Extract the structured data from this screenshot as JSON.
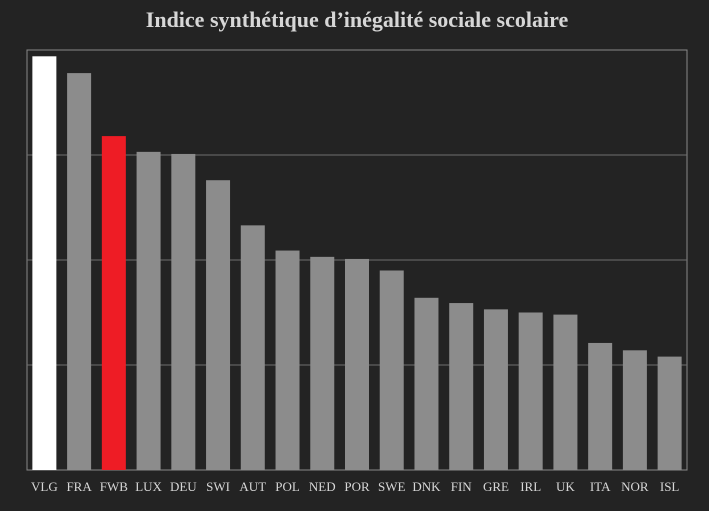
{
  "chart_data": {
    "type": "bar",
    "title": "Indice synthétique d’inégalité sociale scolaire",
    "xlabel": "",
    "ylabel": "",
    "categories": [
      "VLG",
      "FRA",
      "FWB",
      "LUX",
      "DEU",
      "SWI",
      "AUT",
      "POL",
      "NED",
      "POR",
      "SWE",
      "DNK",
      "FIN",
      "GRE",
      "IRL",
      "UK",
      "ITA",
      "NOR",
      "ISL"
    ],
    "values": [
      3.94,
      3.78,
      3.18,
      3.03,
      3.01,
      2.76,
      2.33,
      2.09,
      2.03,
      2.01,
      1.9,
      1.64,
      1.59,
      1.53,
      1.5,
      1.48,
      1.21,
      1.14,
      1.08
    ],
    "ylim": [
      0,
      4
    ],
    "y_gridlines": [
      1,
      2,
      3
    ],
    "y_tick_labels_shown": false,
    "grid": true,
    "legend": "none",
    "colors": {
      "background": "#232323",
      "frame": "#8a8a8a",
      "grid": "#6f6f6f",
      "bar_default": "#8c8c8c",
      "text": "#d7d7d7",
      "highlights": {
        "VLG": "#ffffff",
        "FWB": "#ee1c25"
      }
    }
  }
}
